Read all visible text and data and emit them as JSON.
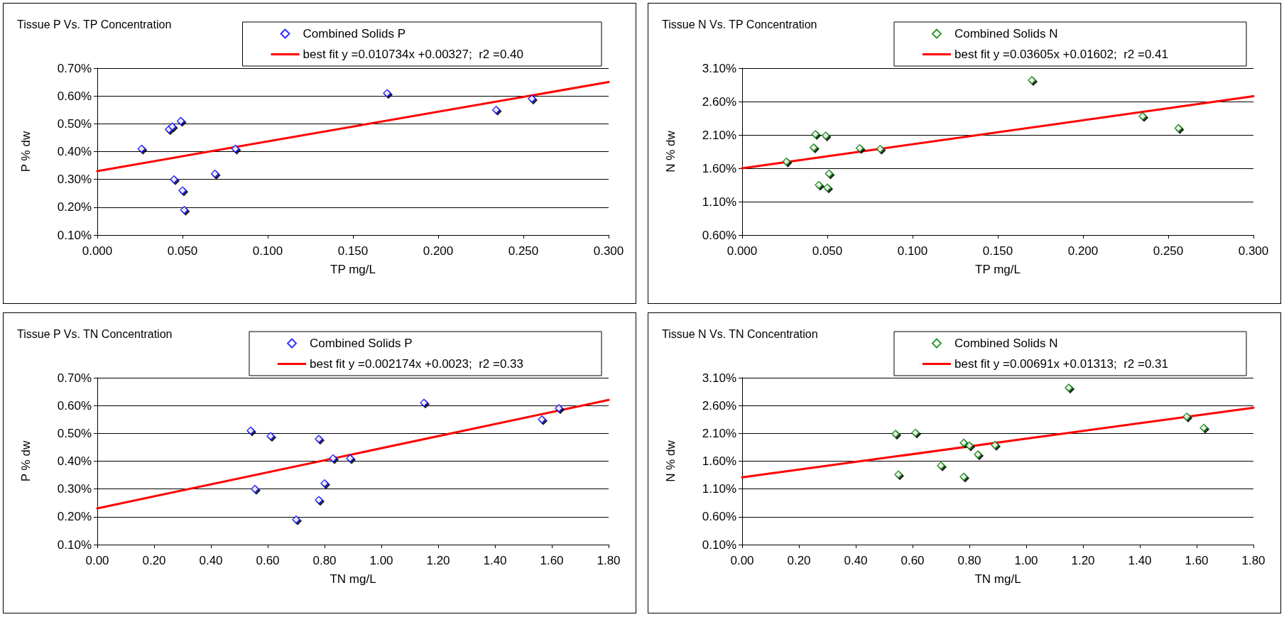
{
  "chart_data": [
    {
      "type": "scatter",
      "title": "Tissue P Vs. TP Concentration",
      "xlabel": "TP mg/L",
      "ylabel": "P % dw",
      "marker": "diamond",
      "grid": "y",
      "legend": "top right",
      "xlim": [
        0,
        0.3
      ],
      "xticks": [
        {
          "value": 0,
          "label": "0.000"
        },
        {
          "value": 0.05,
          "label": "0.050"
        },
        {
          "value": 0.1,
          "label": "0.100"
        },
        {
          "value": 0.15,
          "label": "0.150"
        },
        {
          "value": 0.2,
          "label": "0.200"
        },
        {
          "value": 0.25,
          "label": "0.250"
        },
        {
          "value": 0.3,
          "label": "0.300"
        }
      ],
      "ylim": [
        0.1,
        0.7
      ],
      "yticks": [
        {
          "value": 0.1,
          "label": "0.10%"
        },
        {
          "value": 0.2,
          "label": "0.20%"
        },
        {
          "value": 0.3,
          "label": "0.30%"
        },
        {
          "value": 0.4,
          "label": "0.40%"
        },
        {
          "value": 0.5,
          "label": "0.50%"
        },
        {
          "value": 0.6,
          "label": "0.60%"
        },
        {
          "value": 0.7,
          "label": "0.70%"
        }
      ],
      "series": [
        {
          "name": "Combined Solids P",
          "color": "#0000ff",
          "x": [
            0.026,
            0.042,
            0.044,
            0.049,
            0.045,
            0.05,
            0.051,
            0.069,
            0.081,
            0.17,
            0.234,
            0.255
          ],
          "values": [
            0.41,
            0.48,
            0.49,
            0.51,
            0.3,
            0.26,
            0.19,
            0.32,
            0.41,
            0.61,
            0.55,
            0.59
          ]
        },
        {
          "name": "best fit y =0.010734x +0.00327;  r2 =0.40",
          "type": "line",
          "marker": "none",
          "color": "#ff0000",
          "x": [
            0,
            0.3
          ],
          "values": [
            0.33,
            0.65
          ]
        }
      ]
    },
    {
      "type": "scatter",
      "title": "Tissue N Vs. TP Concentration",
      "xlabel": "TP mg/L",
      "ylabel": "N % dw",
      "marker": "diamond",
      "grid": "y",
      "legend": "top right",
      "xlim": [
        0,
        0.3
      ],
      "xticks": [
        {
          "value": 0,
          "label": "0.000"
        },
        {
          "value": 0.05,
          "label": "0.050"
        },
        {
          "value": 0.1,
          "label": "0.100"
        },
        {
          "value": 0.15,
          "label": "0.150"
        },
        {
          "value": 0.2,
          "label": "0.200"
        },
        {
          "value": 0.25,
          "label": "0.250"
        },
        {
          "value": 0.3,
          "label": "0.300"
        }
      ],
      "ylim": [
        0.6,
        3.1
      ],
      "yticks": [
        {
          "value": 0.6,
          "label": "0.60%"
        },
        {
          "value": 1.1,
          "label": "1.10%"
        },
        {
          "value": 1.6,
          "label": "1.60%"
        },
        {
          "value": 2.1,
          "label": "2.10%"
        },
        {
          "value": 2.6,
          "label": "2.60%"
        },
        {
          "value": 3.1,
          "label": "3.10%"
        }
      ],
      "series": [
        {
          "name": "Combined Solids N",
          "color": "#008000",
          "x": [
            0.026,
            0.042,
            0.043,
            0.049,
            0.045,
            0.05,
            0.051,
            0.069,
            0.081,
            0.17,
            0.235,
            0.256
          ],
          "values": [
            1.7,
            1.91,
            2.11,
            2.09,
            1.35,
            1.31,
            1.52,
            1.9,
            1.89,
            2.92,
            2.38,
            2.2
          ]
        },
        {
          "name": "best fit y =0.03605x +0.01602;  r2 =0.41",
          "type": "line",
          "marker": "none",
          "color": "#ff0000",
          "x": [
            0,
            0.3
          ],
          "values": [
            1.6,
            2.68
          ]
        }
      ]
    },
    {
      "type": "scatter",
      "title": "Tissue P Vs. TN Concentration",
      "xlabel": "TN mg/L",
      "ylabel": "P % dw",
      "marker": "diamond",
      "grid": "y",
      "legend": "top right",
      "xlim": [
        0,
        1.8
      ],
      "xticks": [
        {
          "value": 0,
          "label": "0.00"
        },
        {
          "value": 0.2,
          "label": "0.20"
        },
        {
          "value": 0.4,
          "label": "0.40"
        },
        {
          "value": 0.6,
          "label": "0.60"
        },
        {
          "value": 0.8,
          "label": "0.80"
        },
        {
          "value": 1,
          "label": "1.00"
        },
        {
          "value": 1.2,
          "label": "1.20"
        },
        {
          "value": 1.4,
          "label": "1.40"
        },
        {
          "value": 1.6,
          "label": "1.60"
        },
        {
          "value": 1.8,
          "label": "1.80"
        }
      ],
      "ylim": [
        0.1,
        0.7
      ],
      "yticks": [
        {
          "value": 0.1,
          "label": "0.10%"
        },
        {
          "value": 0.2,
          "label": "0.20%"
        },
        {
          "value": 0.3,
          "label": "0.30%"
        },
        {
          "value": 0.4,
          "label": "0.40%"
        },
        {
          "value": 0.5,
          "label": "0.50%"
        },
        {
          "value": 0.6,
          "label": "0.60%"
        },
        {
          "value": 0.7,
          "label": "0.70%"
        }
      ],
      "series": [
        {
          "name": "Combined Solids P",
          "color": "#0000ff",
          "x": [
            0.54,
            0.61,
            0.78,
            0.83,
            0.89,
            0.555,
            0.8,
            0.78,
            0.7,
            1.15,
            1.565,
            1.625
          ],
          "values": [
            0.51,
            0.49,
            0.48,
            0.41,
            0.41,
            0.3,
            0.32,
            0.26,
            0.19,
            0.61,
            0.55,
            0.59
          ]
        },
        {
          "name": "best fit y =0.002174x +0.0023;  r2 =0.33",
          "type": "line",
          "marker": "none",
          "color": "#ff0000",
          "x": [
            0,
            1.8
          ],
          "values": [
            0.23,
            0.62
          ]
        }
      ]
    },
    {
      "type": "scatter",
      "title": "Tissue N Vs. TN Concentration",
      "xlabel": "TN mg/L",
      "ylabel": "N % dw",
      "marker": "diamond",
      "grid": "y",
      "legend": "top right",
      "xlim": [
        0,
        1.8
      ],
      "xticks": [
        {
          "value": 0,
          "label": "0.00"
        },
        {
          "value": 0.2,
          "label": "0.20"
        },
        {
          "value": 0.4,
          "label": "0.40"
        },
        {
          "value": 0.6,
          "label": "0.60"
        },
        {
          "value": 0.8,
          "label": "0.80"
        },
        {
          "value": 1,
          "label": "1.00"
        },
        {
          "value": 1.2,
          "label": "1.20"
        },
        {
          "value": 1.4,
          "label": "1.40"
        },
        {
          "value": 1.6,
          "label": "1.60"
        },
        {
          "value": 1.8,
          "label": "1.80"
        }
      ],
      "ylim": [
        0.1,
        3.1
      ],
      "yticks": [
        {
          "value": 0.1,
          "label": "0.10%"
        },
        {
          "value": 0.6,
          "label": "0.60%"
        },
        {
          "value": 1.1,
          "label": "1.10%"
        },
        {
          "value": 1.6,
          "label": "1.60%"
        },
        {
          "value": 2.1,
          "label": "2.10%"
        },
        {
          "value": 2.6,
          "label": "2.60%"
        },
        {
          "value": 3.1,
          "label": "3.10%"
        }
      ],
      "series": [
        {
          "name": "Combined Solids N",
          "color": "#008000",
          "x": [
            0.54,
            0.61,
            0.78,
            0.8,
            0.83,
            0.89,
            0.55,
            0.7,
            0.78,
            1.15,
            1.565,
            1.625
          ],
          "values": [
            2.09,
            2.11,
            1.93,
            1.88,
            1.72,
            1.89,
            1.36,
            1.52,
            1.32,
            2.92,
            2.4,
            2.2
          ]
        },
        {
          "name": "best fit y =0.00691x +0.01313;  r2 =0.31",
          "type": "line",
          "marker": "none",
          "color": "#ff0000",
          "x": [
            0,
            1.8
          ],
          "values": [
            1.31,
            2.56
          ]
        }
      ]
    }
  ]
}
